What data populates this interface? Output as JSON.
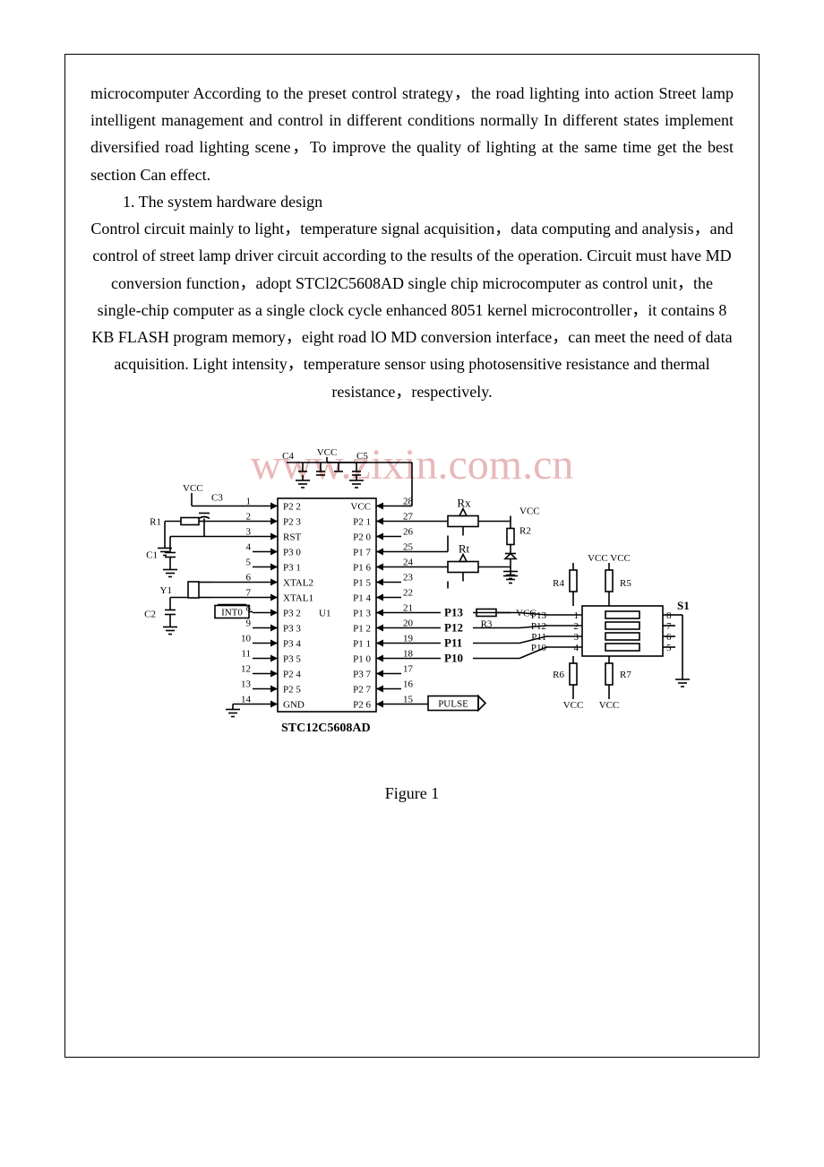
{
  "text": {
    "p1": "microcomputer  According to the preset control strategy，the road lighting into action Street lamp intelligent management and control in different conditions normally In different states implement diversified road lighting scene，To improve the quality of lighting at the same time get the best section Can effect.",
    "h1": "1. The system hardware design",
    "p2": "Control circuit mainly to light，temperature signal acquisition，data computing and analysis，and control of street lamp driver circuit according to the results of the operation. Circuit must have MD conversion function，adopt STCl2C5608AD single chip microcomputer as control unit，the single-chip computer as a single clock cycle enhanced 8051 kernel microcontroller，it contains 8 KB FLASH program memory，eight road lO MD conversion interface，can meet the need of data acquisition. Light intensity，temperature sensor using photosensitive resistance and thermal resistance，respectively.",
    "fig_caption": "Figure 1"
  },
  "watermark": "www.zixin.com.cn",
  "diagram": {
    "chip_label": "STC12C5608AD",
    "chip_body": "U1",
    "left_pins": [
      {
        "num": "1",
        "name": "P2 2"
      },
      {
        "num": "2",
        "name": "P2 3"
      },
      {
        "num": "3",
        "name": "RST"
      },
      {
        "num": "4",
        "name": "P3 0"
      },
      {
        "num": "5",
        "name": "P3 1"
      },
      {
        "num": "6",
        "name": "XTAL2"
      },
      {
        "num": "7",
        "name": "XTAL1"
      },
      {
        "num": "8",
        "name": "P3 2"
      },
      {
        "num": "9",
        "name": "P3 3"
      },
      {
        "num": "10",
        "name": "P3 4"
      },
      {
        "num": "11",
        "name": "P3 5"
      },
      {
        "num": "12",
        "name": "P2 4"
      },
      {
        "num": "13",
        "name": "P2 5"
      },
      {
        "num": "14",
        "name": "GND"
      }
    ],
    "right_pins": [
      {
        "num": "28",
        "name": "VCC"
      },
      {
        "num": "27",
        "name": "P2 1"
      },
      {
        "num": "26",
        "name": "P2 0"
      },
      {
        "num": "25",
        "name": "P1 7"
      },
      {
        "num": "24",
        "name": "P1 6"
      },
      {
        "num": "23",
        "name": "P1 5"
      },
      {
        "num": "22",
        "name": "P1 4"
      },
      {
        "num": "21",
        "name": "P1 3"
      },
      {
        "num": "20",
        "name": "P1 2"
      },
      {
        "num": "19",
        "name": "P1 1"
      },
      {
        "num": "18",
        "name": "P1 0"
      },
      {
        "num": "17",
        "name": "P3 7"
      },
      {
        "num": "16",
        "name": "P2 7"
      },
      {
        "num": "15",
        "name": "P2 6"
      }
    ],
    "labels": {
      "vcc_top": "VCC",
      "c4": "C4",
      "c5": "C5",
      "vcc_left": "VCC",
      "c3": "C3",
      "r1": "R1",
      "c1": "C1",
      "c2": "C2",
      "y1": "Y1",
      "into": "INT0",
      "rx": "Rx",
      "r2": "R2",
      "rt": "Rt",
      "r3": "R3",
      "vcc_r": "VCC",
      "p13": "P13",
      "p12": "P12",
      "p11": "P11",
      "p10": "P10",
      "pulse": "PULSE",
      "dip_p13": "P13",
      "dip_p12": "P12",
      "dip_p11": "P11",
      "dip_p10": "P10",
      "dip1": "1",
      "dip2": "2",
      "dip3": "3",
      "dip4": "4",
      "dip5": "5",
      "dip6": "6",
      "dip7": "7",
      "dip8": "8",
      "s1": "S1",
      "r4": "R4",
      "r5": "R5",
      "r6": "R6",
      "r7": "R7",
      "vcc_pair": "VCC VCC"
    },
    "colors": {
      "line": "#000000",
      "bg": "#ffffff",
      "watermark": "#d77f7f"
    },
    "style": {
      "stroke_width": 1.6,
      "font_small": 11,
      "font_label": 13
    }
  }
}
